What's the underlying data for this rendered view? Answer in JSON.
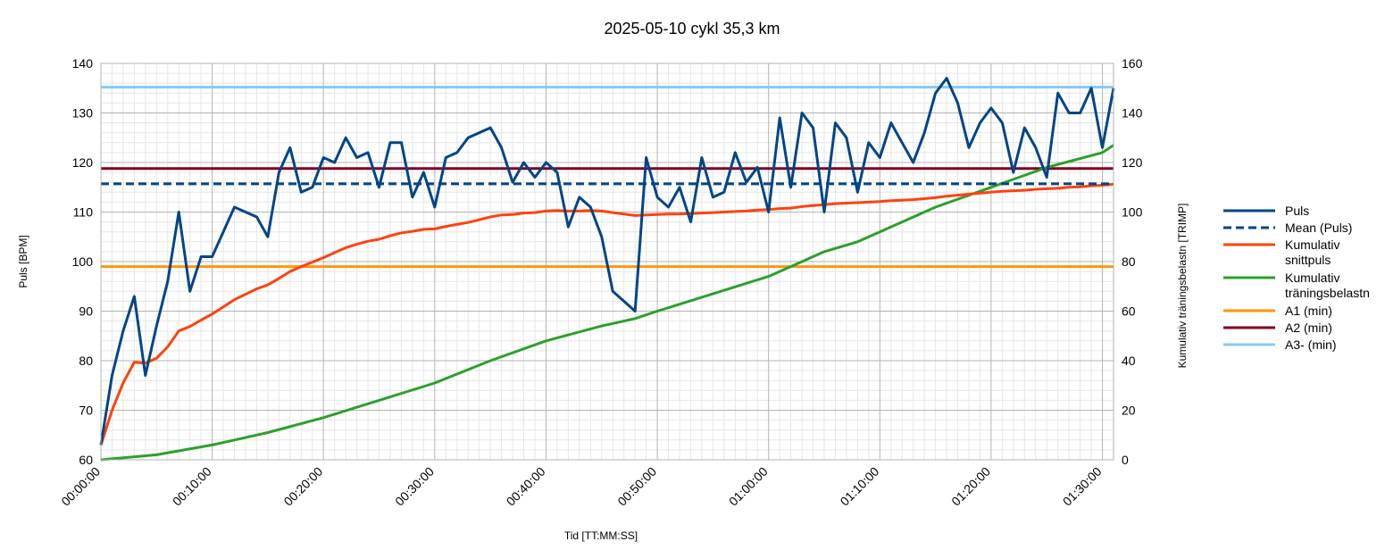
{
  "chart_data": {
    "type": "line",
    "title": "2025-05-10 cykl 35,3 km",
    "xlabel": "Tid [TT:MM:SS]",
    "ylabel": "Puls [BPM]",
    "y2label": "Kumulativ träningsbelastn [TRIMP]",
    "xlim_minutes": [
      0,
      91
    ],
    "ylim": [
      60,
      140
    ],
    "y2lim": [
      0,
      160
    ],
    "x_ticks": [
      "00:00:00",
      "00:10:00",
      "00:20:00",
      "00:30:00",
      "00:40:00",
      "00:50:00",
      "01:00:00",
      "01:10:00",
      "01:20:00",
      "01:30:00"
    ],
    "y_ticks": [
      60,
      70,
      80,
      90,
      100,
      110,
      120,
      130,
      140
    ],
    "y2_ticks": [
      0,
      20,
      40,
      60,
      80,
      100,
      120,
      140,
      160
    ],
    "grid": true,
    "legend_placement": "right",
    "series": [
      {
        "name": "Puls",
        "axis": "left",
        "color": "#004586",
        "dash": "solid",
        "x": [
          0,
          1,
          2,
          3,
          4,
          5,
          6,
          7,
          8,
          9,
          10,
          12,
          14,
          15,
          16,
          17,
          18,
          19,
          20,
          21,
          22,
          23,
          24,
          25,
          26,
          27,
          28,
          29,
          30,
          31,
          32,
          33,
          35,
          36,
          37,
          38,
          39,
          40,
          41,
          42,
          43,
          44,
          45,
          46,
          48,
          49,
          50,
          51,
          52,
          53,
          54,
          55,
          56,
          57,
          58,
          59,
          60,
          61,
          62,
          63,
          64,
          65,
          66,
          67,
          68,
          69,
          70,
          71,
          72,
          73,
          74,
          75,
          76,
          77,
          78,
          79,
          80,
          81,
          82,
          83,
          84,
          85,
          86,
          87,
          88,
          89,
          90,
          91
        ],
        "y": [
          63,
          77,
          86,
          93,
          77,
          87,
          96,
          110,
          94,
          101,
          101,
          111,
          109,
          105,
          118,
          123,
          114,
          115,
          121,
          120,
          125,
          121,
          122,
          115,
          124,
          124,
          113,
          118,
          111,
          121,
          122,
          125,
          127,
          123,
          116,
          120,
          117,
          120,
          118,
          107,
          113,
          111,
          105,
          94,
          90,
          121,
          113,
          111,
          115,
          108,
          121,
          113,
          114,
          122,
          116,
          119,
          110,
          129,
          115,
          130,
          127,
          110,
          128,
          125,
          114,
          124,
          121,
          128,
          124,
          120,
          126,
          134,
          137,
          132,
          123,
          128,
          131,
          128,
          118,
          127,
          123,
          117,
          134,
          130,
          130,
          135,
          123,
          135
        ]
      },
      {
        "name": "Mean (Puls)",
        "axis": "left",
        "color": "#004586",
        "dash": "dashed",
        "x": [
          0,
          91
        ],
        "y": [
          115.7,
          115.7
        ]
      },
      {
        "name": "Kumulativ snittpuls",
        "axis": "left",
        "color": "#ff420e",
        "dash": "solid",
        "x": [
          0,
          1,
          2,
          3,
          4,
          5,
          6,
          7,
          8,
          9,
          10,
          12,
          14,
          15,
          16,
          17,
          18,
          19,
          20,
          21,
          22,
          23,
          24,
          25,
          26,
          27,
          28,
          29,
          30,
          31,
          32,
          33,
          35,
          36,
          37,
          38,
          39,
          40,
          41,
          42,
          43,
          44,
          45,
          46,
          48,
          49,
          50,
          51,
          52,
          53,
          54,
          55,
          56,
          57,
          58,
          59,
          60,
          61,
          62,
          63,
          64,
          65,
          66,
          67,
          68,
          69,
          70,
          71,
          72,
          73,
          74,
          75,
          76,
          77,
          78,
          79,
          80,
          81,
          82,
          83,
          84,
          85,
          86,
          87,
          88,
          89,
          90,
          91
        ],
        "y": [
          63,
          70,
          75.5,
          79.7,
          79.5,
          80.5,
          82.8,
          86,
          86.9,
          88.2,
          89.4,
          92.3,
          94.5,
          95.3,
          96.6,
          98,
          99,
          99.9,
          100.8,
          101.8,
          102.8,
          103.5,
          104.1,
          104.5,
          105.2,
          105.8,
          106.1,
          106.5,
          106.6,
          107.1,
          107.5,
          107.9,
          109,
          109.4,
          109.5,
          109.8,
          109.9,
          110.2,
          110.3,
          110.2,
          110.2,
          110.3,
          110.2,
          109.9,
          109.3,
          109.4,
          109.5,
          109.6,
          109.6,
          109.7,
          109.8,
          109.9,
          110,
          110.1,
          110.2,
          110.4,
          110.5,
          110.7,
          110.8,
          111.1,
          111.3,
          111.5,
          111.7,
          111.8,
          111.9,
          112,
          112.1,
          112.3,
          112.4,
          112.5,
          112.7,
          112.9,
          113.2,
          113.4,
          113.6,
          113.8,
          114,
          114.2,
          114.3,
          114.4,
          114.6,
          114.7,
          114.8,
          115,
          115.1,
          115.3,
          115.4,
          115.6
        ]
      },
      {
        "name": "Kumulativ träningsbelastn",
        "axis": "right",
        "color": "#2ca02c",
        "dash": "solid",
        "x": [
          0,
          5,
          10,
          15,
          20,
          25,
          30,
          35,
          40,
          45,
          48,
          50,
          55,
          60,
          63,
          65,
          68,
          70,
          75,
          80,
          85,
          90,
          91
        ],
        "y": [
          0,
          2,
          6,
          11,
          17,
          24,
          31,
          40,
          48,
          54,
          57,
          60,
          67,
          74,
          80,
          84,
          88,
          92,
          102,
          110,
          118,
          124,
          127
        ]
      },
      {
        "name": "A1 (min)",
        "axis": "left",
        "color": "#ff950e",
        "dash": "solid",
        "x": [
          0,
          91
        ],
        "y": [
          99,
          99
        ]
      },
      {
        "name": "A2 (min)",
        "axis": "left",
        "color": "#7e0021",
        "dash": "solid",
        "x": [
          0,
          91
        ],
        "y": [
          118.8,
          118.8
        ]
      },
      {
        "name": "A3- (min)",
        "axis": "left",
        "color": "#83caff",
        "dash": "solid",
        "x": [
          0,
          91
        ],
        "y": [
          135.2,
          135.2
        ]
      }
    ],
    "legend": [
      {
        "lines": [
          "Puls"
        ],
        "color": "#004586",
        "dash": "solid"
      },
      {
        "lines": [
          "Mean (Puls)"
        ],
        "color": "#004586",
        "dash": "dashed"
      },
      {
        "lines": [
          "Kumulativ",
          "snittpuls"
        ],
        "color": "#ff420e",
        "dash": "solid"
      },
      {
        "lines": [
          "Kumulativ",
          "träningsbelastn"
        ],
        "color": "#2ca02c",
        "dash": "solid"
      },
      {
        "lines": [
          "A1 (min)"
        ],
        "color": "#ff950e",
        "dash": "solid"
      },
      {
        "lines": [
          "A2 (min)"
        ],
        "color": "#7e0021",
        "dash": "solid"
      },
      {
        "lines": [
          "A3- (min)"
        ],
        "color": "#83caff",
        "dash": "solid"
      }
    ]
  }
}
